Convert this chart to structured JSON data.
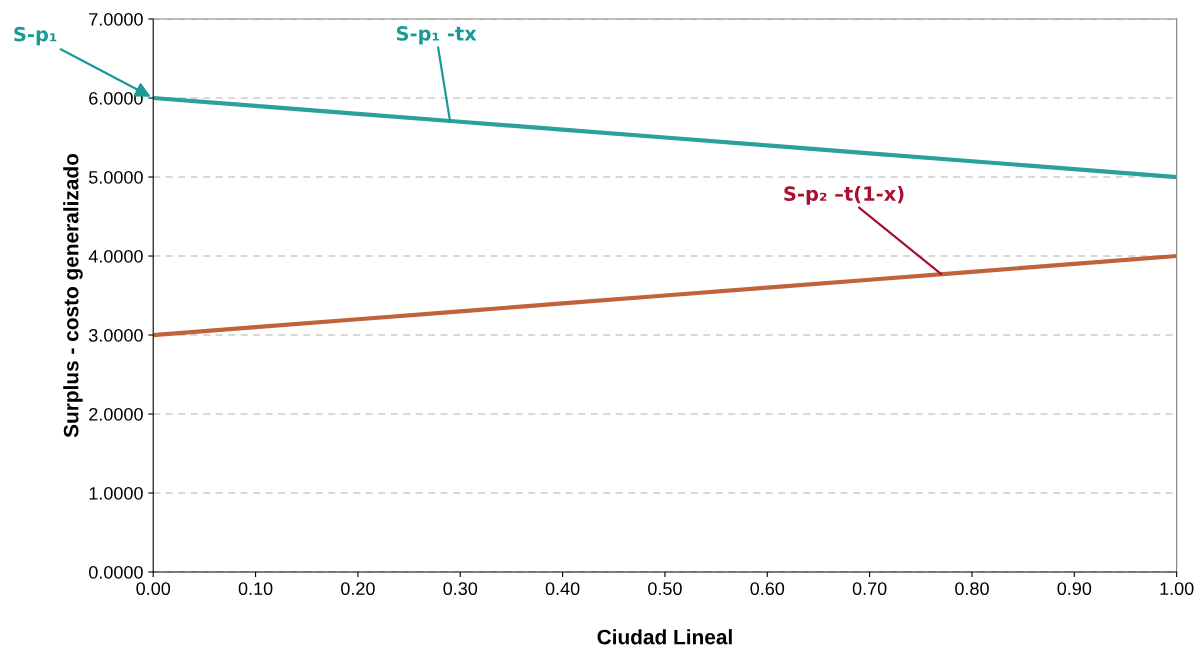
{
  "chart_data": {
    "type": "line",
    "xlabel": "Ciudad Lineal",
    "ylabel": "Surplus - costo generalizado",
    "x": [
      0,
      0.1,
      0.2,
      0.3,
      0.4,
      0.5,
      0.6,
      0.7,
      0.8,
      0.9,
      1.0
    ],
    "series": [
      {
        "color": "#2aa19b",
        "values": [
          6.0,
          5.9,
          5.8,
          5.7,
          5.6,
          5.5,
          5.4,
          5.3,
          5.2,
          5.1,
          5.0
        ]
      },
      {
        "color": "#c0623a",
        "values": [
          3.0,
          3.1,
          3.2,
          3.3,
          3.4,
          3.5,
          3.6,
          3.7,
          3.8,
          3.9,
          4.0
        ]
      }
    ],
    "xlim": [
      0,
      1
    ],
    "ylim": [
      0,
      7
    ],
    "xticks": [
      {
        "value": 0,
        "label": "0.00"
      },
      {
        "value": 0.1,
        "label": "0.10"
      },
      {
        "value": 0.2,
        "label": "0.20"
      },
      {
        "value": 0.3,
        "label": "0.30"
      },
      {
        "value": 0.4,
        "label": "0.40"
      },
      {
        "value": 0.5,
        "label": "0.50"
      },
      {
        "value": 0.6,
        "label": "0.60"
      },
      {
        "value": 0.7,
        "label": "0.70"
      },
      {
        "value": 0.8,
        "label": "0.80"
      },
      {
        "value": 0.9,
        "label": "0.90"
      },
      {
        "value": 1,
        "label": "1.00"
      }
    ],
    "yticks": [
      {
        "value": 0,
        "label": "0.0000"
      },
      {
        "value": 1,
        "label": "1.0000"
      },
      {
        "value": 2,
        "label": "2.0000"
      },
      {
        "value": 3,
        "label": "3.0000"
      },
      {
        "value": 4,
        "label": "4.0000"
      },
      {
        "value": 5,
        "label": "5.0000"
      },
      {
        "value": 6,
        "label": "6.0000"
      },
      {
        "value": 7,
        "label": "7.0000"
      }
    ],
    "grid": "y",
    "marker": "none",
    "line_style": "solid",
    "legend": false,
    "annotations": [
      {
        "text": "S-p₁",
        "x": 0,
        "y": 6.0
      },
      {
        "text": "S-p₁ -tx",
        "x": 0.29,
        "y": 5.71
      },
      {
        "text": "S-p₂ –t(1-x)",
        "x": 0.77,
        "y": 3.77
      }
    ]
  }
}
